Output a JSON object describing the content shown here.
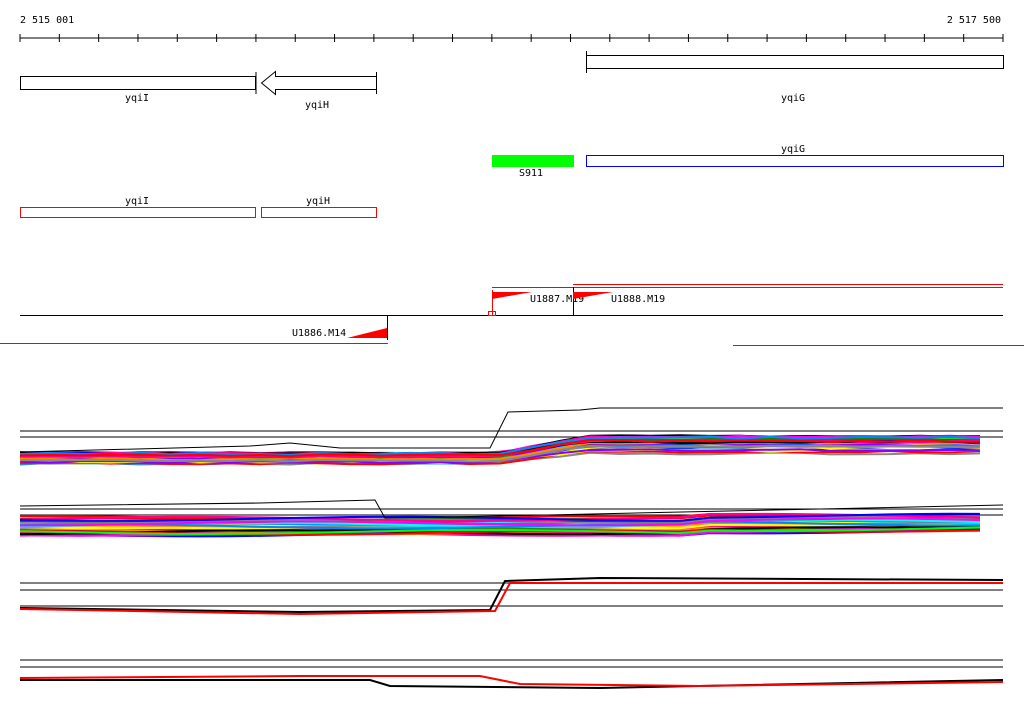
{
  "ruler": {
    "start_label": "2 515 001",
    "end_label": "2 517 500"
  },
  "genes_top": [
    {
      "name": "yqiI",
      "strand": "+"
    },
    {
      "name": "yqiH",
      "strand": "-"
    },
    {
      "name": "yqiG",
      "strand": "+"
    }
  ],
  "features": {
    "green_label": "S911",
    "blue_label": "yqiG",
    "green_color": "#00ff00",
    "blue_color": "#0000ff"
  },
  "red_genes": [
    {
      "name": "yqiI"
    },
    {
      "name": "yqiH"
    }
  ],
  "transcripts": [
    {
      "label": "U1886.M14"
    },
    {
      "label": "U1887.M19"
    },
    {
      "label": "U1888.M19"
    }
  ],
  "colors": {
    "accent": "#ff0000",
    "line": "#000000"
  }
}
